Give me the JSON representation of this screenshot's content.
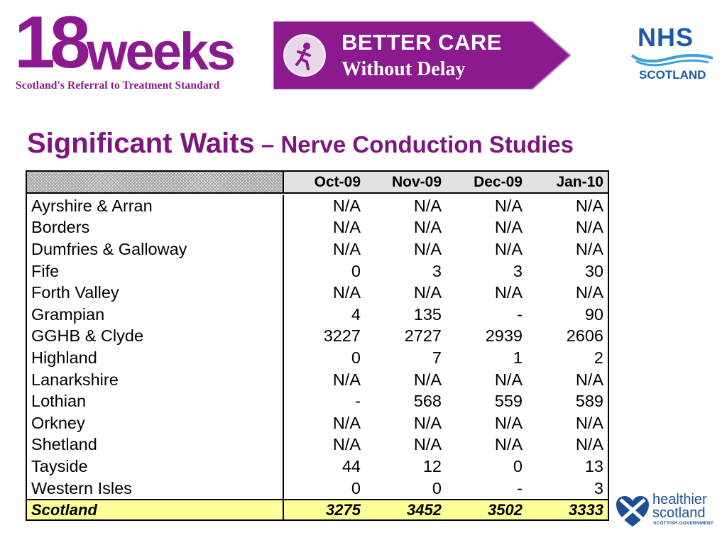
{
  "header": {
    "logo_18weeks": {
      "big": "18",
      "word": "weeks",
      "tagline": "Scotland's Referral to Treatment Standard"
    },
    "banner": {
      "line1": "BETTER CARE",
      "line2": "Without Delay",
      "color": "#8b1a8f"
    },
    "nhs_logo": {
      "name": "NHS",
      "region": "SCOTLAND",
      "color": "#1c5aa8"
    }
  },
  "title": {
    "main": "Significant Waits",
    "sub": " – Nerve Conduction Studies",
    "color": "#7d1580"
  },
  "table": {
    "columns": [
      "Oct-09",
      "Nov-09",
      "Dec-09",
      "Jan-10"
    ],
    "rows": [
      {
        "name": "Ayrshire & Arran",
        "values": [
          "N/A",
          "N/A",
          "N/A",
          "N/A"
        ]
      },
      {
        "name": "Borders",
        "values": [
          "N/A",
          "N/A",
          "N/A",
          "N/A"
        ]
      },
      {
        "name": "Dumfries & Galloway",
        "values": [
          "N/A",
          "N/A",
          "N/A",
          "N/A"
        ]
      },
      {
        "name": "Fife",
        "values": [
          "0",
          "3",
          "3",
          "30"
        ]
      },
      {
        "name": "Forth Valley",
        "values": [
          "N/A",
          "N/A",
          "N/A",
          "N/A"
        ]
      },
      {
        "name": "Grampian",
        "values": [
          "4",
          "135",
          "-",
          "90"
        ]
      },
      {
        "name": "GGHB & Clyde",
        "values": [
          "3227",
          "2727",
          "2939",
          "2606"
        ]
      },
      {
        "name": "Highland",
        "values": [
          "0",
          "7",
          "1",
          "2"
        ]
      },
      {
        "name": "Lanarkshire",
        "values": [
          "N/A",
          "N/A",
          "N/A",
          "N/A"
        ]
      },
      {
        "name": "Lothian",
        "values": [
          "-",
          "568",
          "559",
          "589"
        ]
      },
      {
        "name": "Orkney",
        "values": [
          "N/A",
          "N/A",
          "N/A",
          "N/A"
        ]
      },
      {
        "name": "Shetland",
        "values": [
          "N/A",
          "N/A",
          "N/A",
          "N/A"
        ]
      },
      {
        "name": "Tayside",
        "values": [
          "44",
          "12",
          "0",
          "13"
        ]
      },
      {
        "name": "Western Isles",
        "values": [
          "0",
          "0",
          "-",
          "3"
        ]
      }
    ],
    "total": {
      "name": "Scotland",
      "values": [
        "3275",
        "3452",
        "3502",
        "3333"
      ],
      "highlight": "#ffff99"
    }
  },
  "footer": {
    "healthier_scotland": {
      "line1": "healthier",
      "line2": "scotland",
      "line3": "SCOTTISH GOVERNMENT"
    }
  }
}
